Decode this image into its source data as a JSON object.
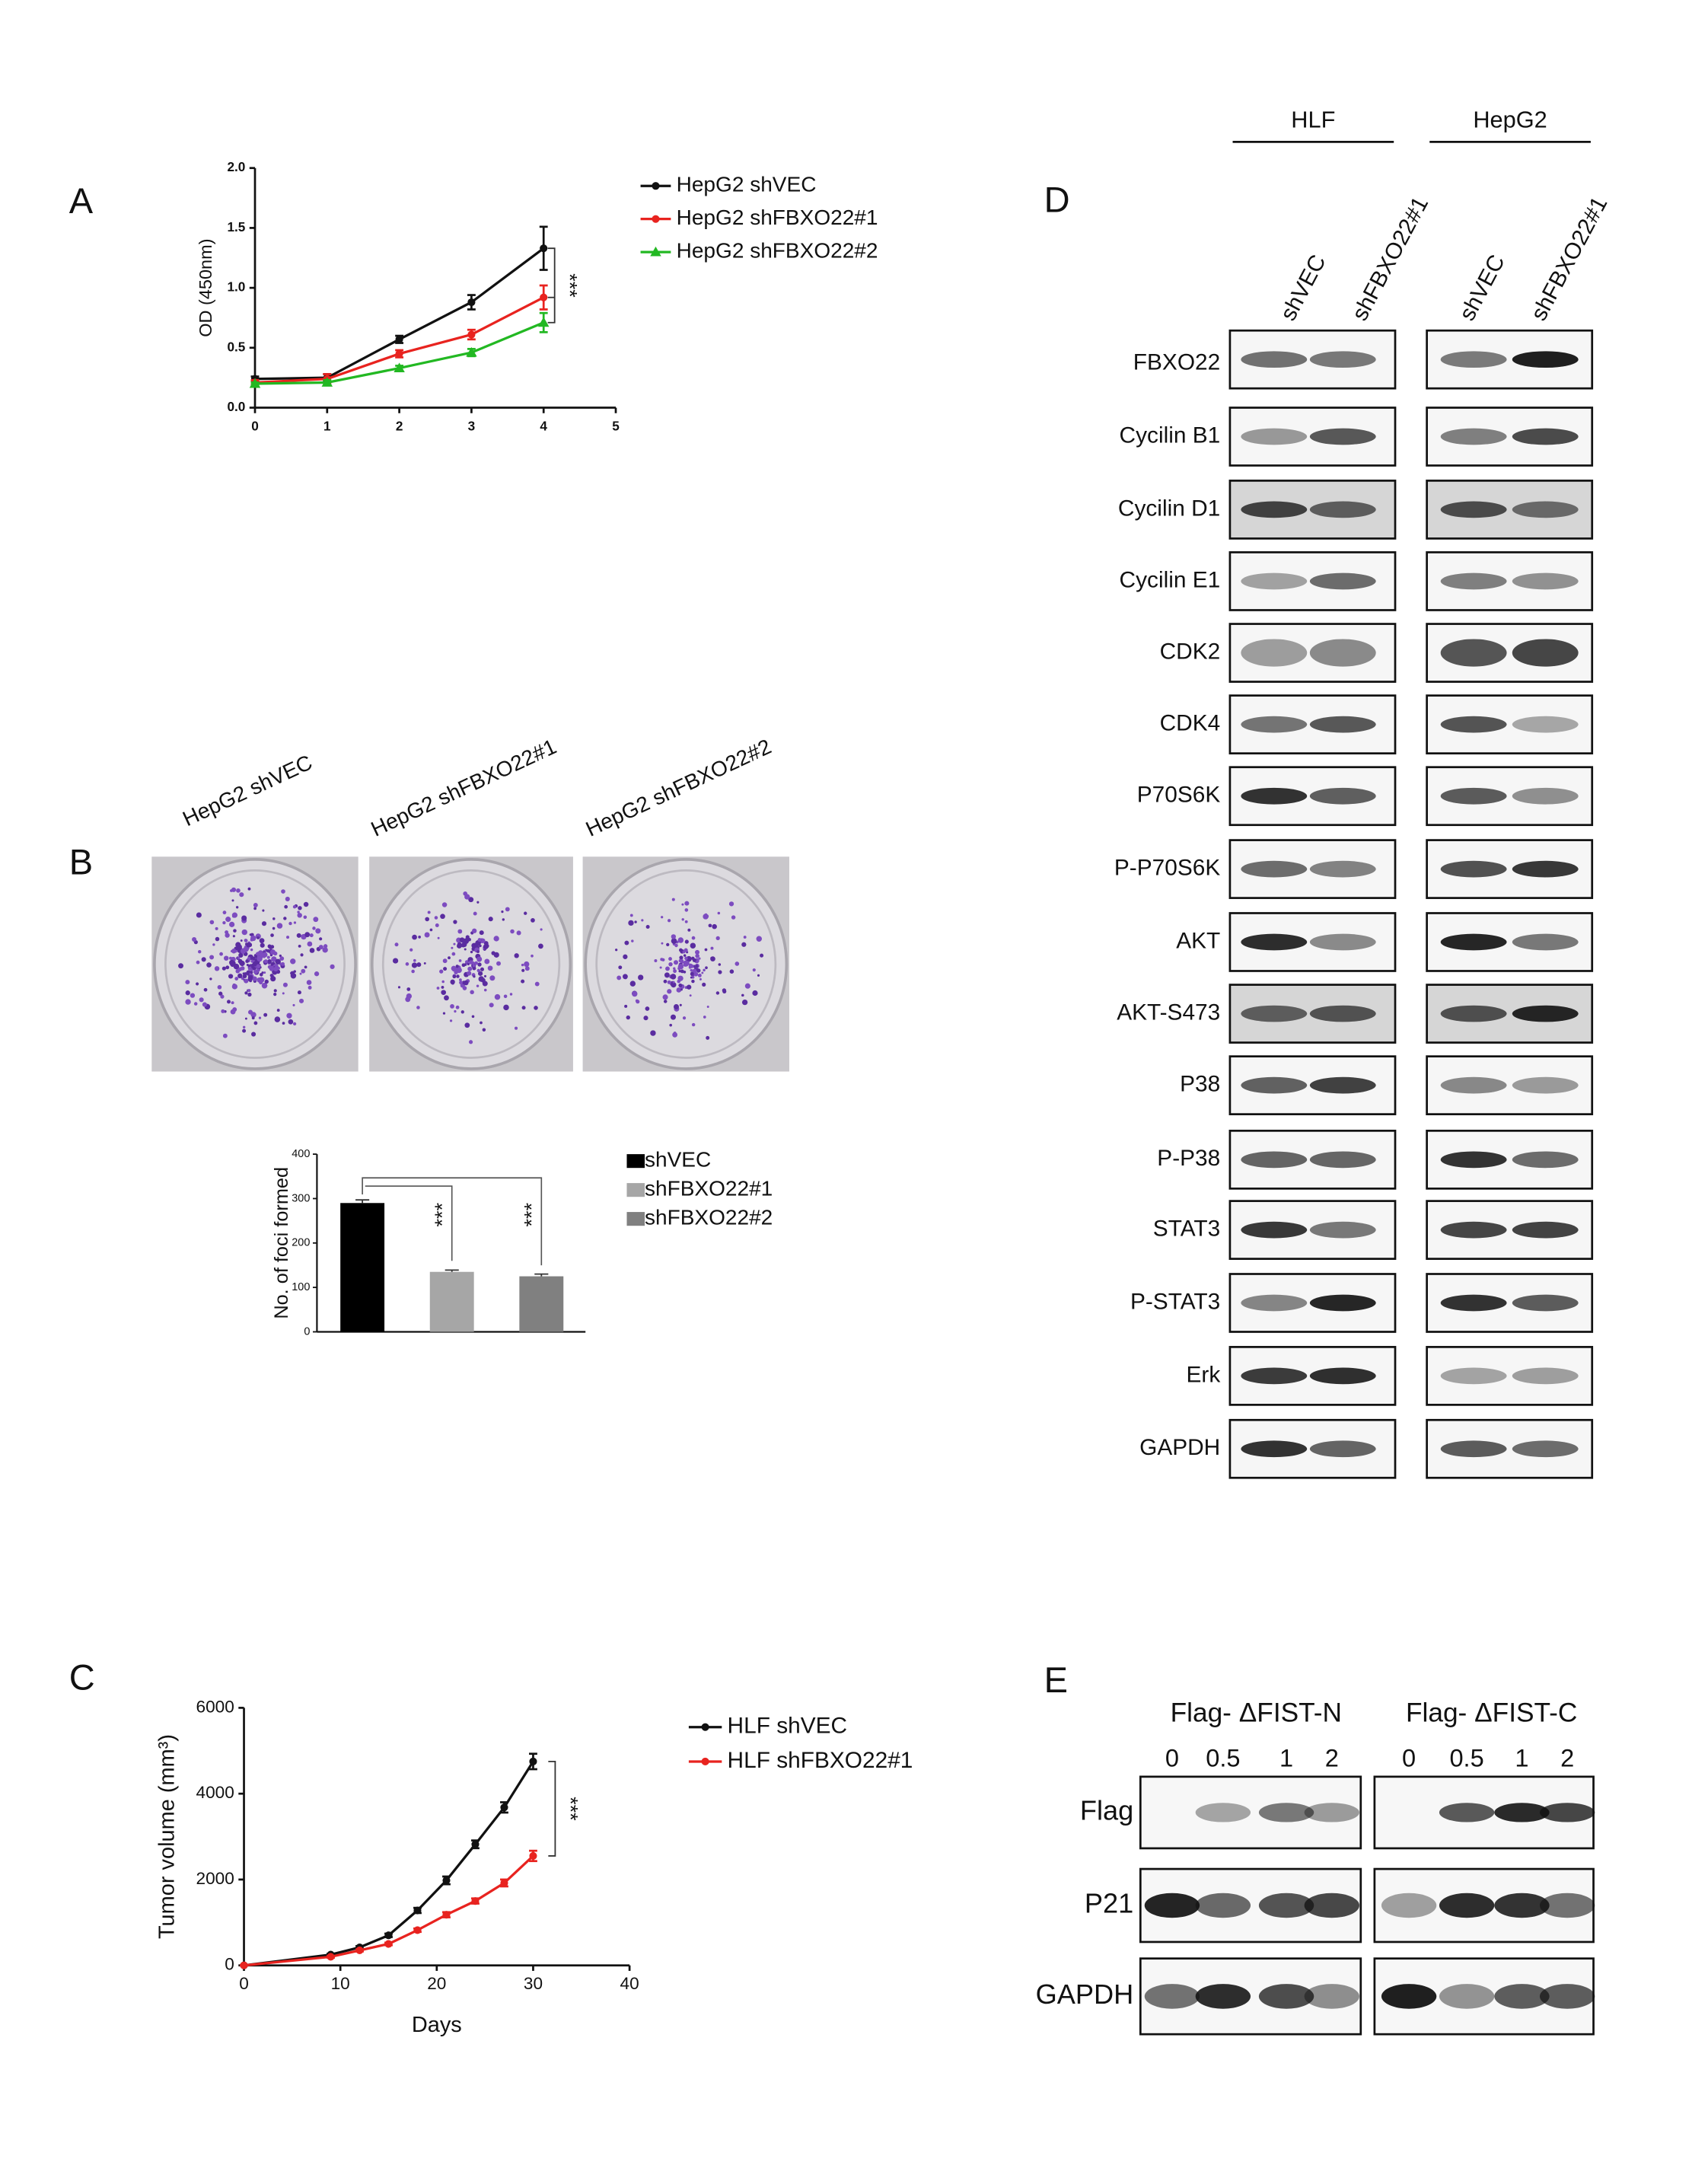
{
  "panel_labels": [
    "A",
    "B",
    "C",
    "D",
    "E"
  ],
  "chart_data": [
    {
      "type": "line",
      "ylabel": "OD (450nm)",
      "x": [
        0,
        1,
        2,
        3,
        4
      ],
      "xlim": [
        0,
        5
      ],
      "xticks": [
        0,
        1,
        2,
        3,
        4,
        5
      ],
      "ylim": [
        0,
        2
      ],
      "yticks": [
        {
          "value": 0,
          "label": "0.0"
        },
        {
          "value": 0.5,
          "label": "0.5"
        },
        {
          "value": 1,
          "label": "1.0"
        },
        {
          "value": 1.5,
          "label": "1.5"
        },
        {
          "value": 2,
          "label": "2.0"
        }
      ],
      "series": [
        {
          "name": "HepG2 shVEC",
          "color": "#111111",
          "marker": "circle",
          "values": [
            0.24,
            0.25,
            0.57,
            0.88,
            1.33
          ],
          "errors": [
            0.02,
            0.03,
            0.03,
            0.06,
            0.18
          ]
        },
        {
          "name": "HepG2 shFBXO22#1",
          "color": "#e8231f",
          "marker": "circle",
          "values": [
            0.21,
            0.24,
            0.45,
            0.61,
            0.92
          ],
          "errors": [
            0.02,
            0.04,
            0.03,
            0.04,
            0.1
          ]
        },
        {
          "name": "HepG2 shFBXO22#2",
          "color": "#22b822",
          "marker": "triangle",
          "values": [
            0.2,
            0.21,
            0.33,
            0.46,
            0.71
          ],
          "errors": [
            0.01,
            0.02,
            0.02,
            0.03,
            0.08
          ]
        }
      ],
      "annotation": "***"
    },
    {
      "type": "bar",
      "ylabel": "No. of foci formed",
      "categories": [
        "shVEC",
        "shFBXO22#1",
        "shFBXO22#2"
      ],
      "values": [
        290,
        135,
        125
      ],
      "errors": [
        7,
        4,
        5
      ],
      "colors": [
        "#000000",
        "#a6a6a6",
        "#808080"
      ],
      "ylim": [
        0,
        400
      ],
      "yticks": [
        0,
        100,
        200,
        300,
        400
      ],
      "annotations": [
        "***",
        "***"
      ]
    },
    {
      "type": "line",
      "xlabel": "Days",
      "ylabel": "Tumor volume (mm³)",
      "x": [
        0,
        9,
        12,
        15,
        18,
        21,
        24,
        27,
        30
      ],
      "xlim": [
        0,
        40
      ],
      "xticks": [
        0,
        10,
        20,
        30,
        40
      ],
      "ylim": [
        0,
        6000
      ],
      "yticks": [
        0,
        2000,
        4000,
        6000
      ],
      "series": [
        {
          "name": "HLF shVEC",
          "color": "#111111",
          "marker": "circle",
          "values": [
            0,
            250,
            420,
            700,
            1280,
            1980,
            2820,
            3680,
            4750
          ],
          "errors": [
            0,
            20,
            30,
            40,
            60,
            90,
            90,
            120,
            180
          ]
        },
        {
          "name": "HLF shFBXO22#1",
          "color": "#e8231f",
          "marker": "circle",
          "values": [
            0,
            200,
            350,
            500,
            820,
            1180,
            1500,
            1920,
            2550
          ],
          "errors": [
            0,
            20,
            25,
            30,
            40,
            60,
            60,
            80,
            120
          ]
        }
      ],
      "annotation": "***"
    }
  ],
  "plates": {
    "labels": [
      "HepG2 shVEC",
      "HepG2 shFBXO22#1",
      "HepG2 shFBXO22#2"
    ]
  },
  "blot_d": {
    "groups": [
      "HLF",
      "HepG2"
    ],
    "lanes": [
      "shVEC",
      "shFBXO22#1",
      "shVEC",
      "shFBXO22#1"
    ],
    "rows": [
      "FBXO22",
      "Cycilin B1",
      "Cycilin D1",
      "Cycilin E1",
      "CDK2",
      "CDK4",
      "P70S6K",
      "P-P70S6K",
      "AKT",
      "AKT-S473",
      "P38",
      "P-P38",
      "STAT3",
      "P-STAT3",
      "Erk",
      "GAPDH"
    ]
  },
  "blot_e": {
    "groups": [
      "Flag- ΔFIST-N",
      "Flag- ΔFIST-C"
    ],
    "doses": [
      "0",
      "0.5",
      "1",
      "2",
      "0",
      "0.5",
      "1",
      "2"
    ],
    "rows": [
      "Flag",
      "P21",
      "GAPDH"
    ]
  }
}
